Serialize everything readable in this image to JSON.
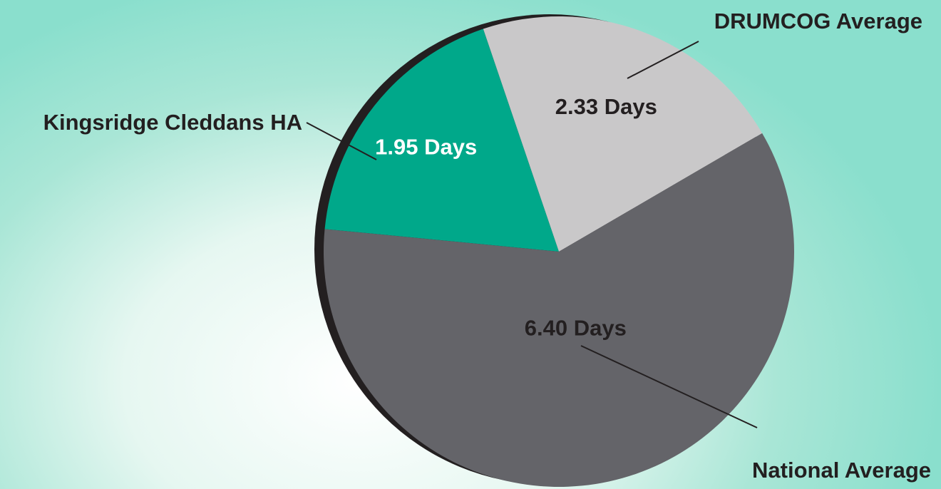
{
  "chart_data": {
    "type": "pie",
    "title": "",
    "slices": [
      {
        "category": "Kingsridge Cleddans HA",
        "value": 1.95,
        "label": "1.95 Days",
        "color": "#00a88a",
        "text_color": "#ffffff"
      },
      {
        "category": "DRUMCOG Average",
        "value": 2.33,
        "label": "2.33 Days",
        "color": "#c9c8c9",
        "text_color": "#231f20"
      },
      {
        "category": "National Average",
        "value": 6.4,
        "label": "6.40 Days",
        "color": "#646469",
        "text_color": "#231f20"
      }
    ],
    "unit": "Days",
    "shadow_color": "#231f20",
    "leader_color": "#231f20",
    "background_colors": [
      "#ffffff",
      "#8adfcd"
    ]
  }
}
